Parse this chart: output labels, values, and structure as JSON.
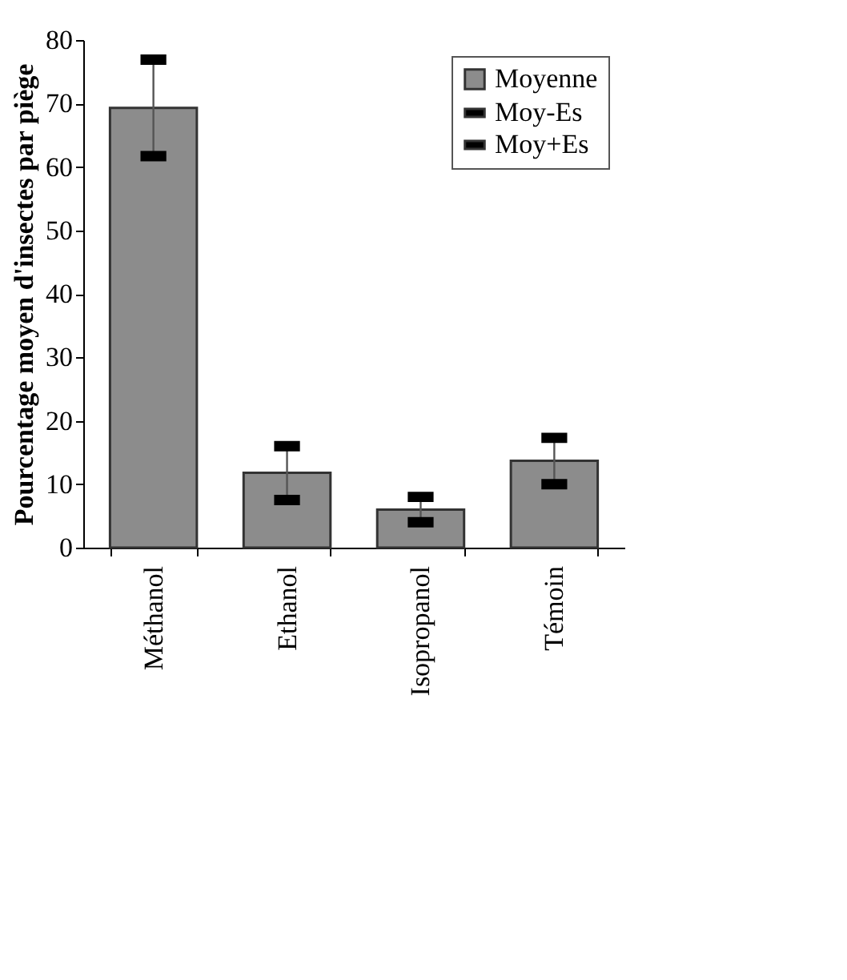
{
  "chart_data": {
    "type": "bar",
    "ylabel": "Pourcentage moyen d'insectes par piège",
    "categories": [
      "Méthanol",
      "Ethanol",
      "Isopropanol",
      "Témoin"
    ],
    "series": [
      {
        "name": "Moyenne",
        "color": "#8c8c8c",
        "values": [
          69.3,
          11.8,
          6,
          13.7
        ]
      },
      {
        "name": "Moy-Es",
        "type": "scatter",
        "color": "#000000",
        "x": [
          "Méthanol",
          "Ethanol",
          "Isopropanol",
          "Témoin"
        ],
        "values": [
          61.7,
          7.5,
          4,
          10
        ]
      },
      {
        "name": "Moy+Es",
        "type": "scatter",
        "color": "#000000",
        "x": [
          "Méthanol",
          "Ethanol",
          "Isopropanol",
          "Témoin"
        ],
        "values": [
          76.9,
          16,
          8,
          17.3
        ]
      }
    ],
    "ylim": [
      0,
      80
    ],
    "yticks": [
      0,
      10,
      20,
      30,
      40,
      50,
      60,
      70,
      80
    ],
    "legend": "top right"
  }
}
